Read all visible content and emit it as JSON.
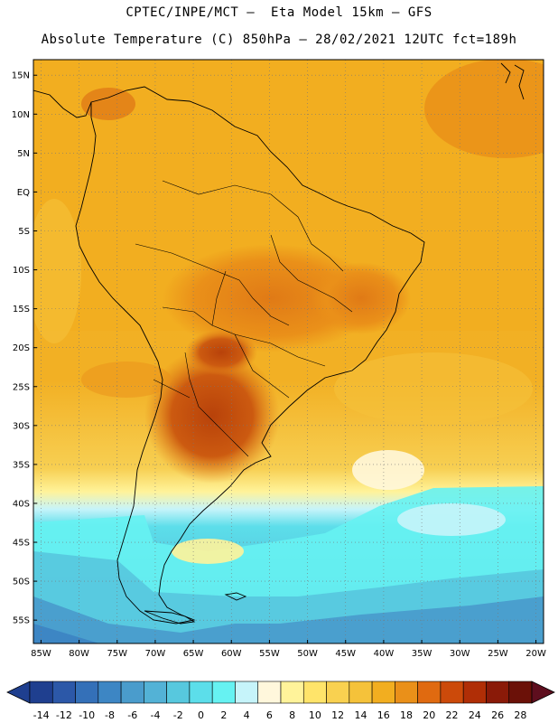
{
  "header": {
    "line1": "CPTEC/INPE/MCT —  Eta Model 15km — GFS",
    "line2": "Absolute Temperature (C) 850hPa — 28/02/2021 12UTC fct=189h"
  },
  "axes": {
    "lat_labels": [
      "15N",
      "10N",
      "5N",
      "EQ",
      "5S",
      "10S",
      "15S",
      "20S",
      "25S",
      "30S",
      "35S",
      "40S",
      "45S",
      "50S",
      "55S"
    ],
    "lat_values": [
      15,
      10,
      5,
      0,
      -5,
      -10,
      -15,
      -20,
      -25,
      -30,
      -35,
      -40,
      -45,
      -50,
      -55
    ],
    "lon_labels": [
      "85W",
      "80W",
      "75W",
      "70W",
      "65W",
      "60W",
      "55W",
      "50W",
      "45W",
      "40W",
      "35W",
      "30W",
      "25W",
      "20W"
    ],
    "lon_values": [
      -85,
      -80,
      -75,
      -70,
      -65,
      -60,
      -55,
      -50,
      -45,
      -40,
      -35,
      -30,
      -25,
      -20
    ],
    "lat_range": [
      -58,
      17
    ],
    "lon_range": [
      -86,
      -19
    ],
    "grid": "dotted"
  },
  "colorbar": {
    "labels": [
      "-14",
      "-12",
      "-10",
      "-8",
      "-6",
      "-4",
      "-2",
      "0",
      "2",
      "4",
      "6",
      "8",
      "10",
      "12",
      "14",
      "16",
      "18",
      "20",
      "22",
      "24",
      "26",
      "28"
    ],
    "colors": [
      "#1f3f8f",
      "#2c58a8",
      "#3470b8",
      "#3d86c4",
      "#4a9ccc",
      "#53b2d6",
      "#57c8de",
      "#5cdeea",
      "#66f2f2",
      "#c6f4fa",
      "#fff7dc",
      "#fff39a",
      "#ffe46a",
      "#f9d150",
      "#f5c23a",
      "#f2ae20",
      "#ea9019",
      "#e06a10",
      "#cc4a0a",
      "#b02e06",
      "#8a1a08",
      "#6b1108"
    ]
  }
}
